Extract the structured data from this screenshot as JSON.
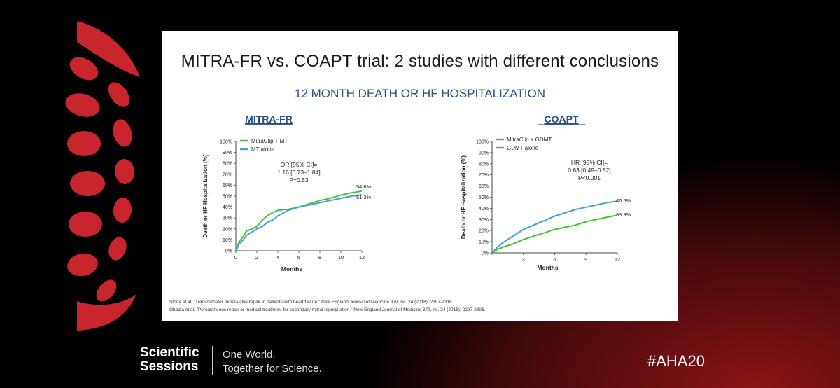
{
  "slide": {
    "title": "MITRA-FR vs. COAPT trial: 2 studies with different conclusions",
    "subtitle": "12 MONTH DEATH OR HF HOSPITALIZATION",
    "references": [
      "Stone et al. \"Transcatheter mitral-valve repair in patients with heart failure.\" New England Journal of Medicine 379, no. 24 (2018): 2307-2318.",
      "Obadia et al. \"Percutaneous repair or medical treatment for secondary mitral regurgitation.\" New England Journal of Medicine 379, no. 24 (2018): 2297-2306."
    ]
  },
  "footer": {
    "brand_line1": "Scientific",
    "brand_line2": "Sessions",
    "tagline_line1": "One World.",
    "tagline_line2": "Together for Science.",
    "hashtag": "#AHA20"
  },
  "colors": {
    "green": "#44c43a",
    "blue": "#4a9fd8",
    "title_blue": "#2a4f80",
    "brand_red": "#c8262c"
  },
  "chart_data": [
    {
      "type": "line",
      "title": "MITRA-FR",
      "xlabel": "Months",
      "ylabel": "Death or  HF Hospitalization (%)",
      "xlim": [
        0,
        12
      ],
      "ylim": [
        0,
        100
      ],
      "xticks": [
        0,
        2,
        4,
        6,
        8,
        10,
        12
      ],
      "yticks": [
        0,
        10,
        20,
        30,
        40,
        50,
        60,
        70,
        80,
        90,
        100
      ],
      "ytick_labels": [
        "0%",
        "10%",
        "20%",
        "30%",
        "40%",
        "50%",
        "60%",
        "70%",
        "80%",
        "90%",
        "100%"
      ],
      "annotation": [
        "OR [95% CI]=",
        "1.16 [0.73–1.84]",
        "P=0.53"
      ],
      "series": [
        {
          "name": "MitraClip + MT",
          "color": "green",
          "end_label": "54.6%",
          "x": [
            0,
            0.3,
            0.7,
            1,
            1.5,
            2,
            2.5,
            3,
            3.5,
            4,
            5,
            6,
            7,
            8,
            9,
            10,
            11,
            12
          ],
          "y": [
            0,
            8,
            13,
            18,
            20,
            22,
            28,
            32,
            35,
            37,
            38,
            40,
            43,
            46,
            48,
            51,
            53,
            54.6
          ]
        },
        {
          "name": "MT alone",
          "color": "blue",
          "end_label": "51.3%",
          "x": [
            0,
            0.3,
            0.7,
            1,
            1.5,
            2,
            2.5,
            3,
            3.5,
            4,
            5,
            6,
            7,
            8,
            9,
            10,
            11,
            12
          ],
          "y": [
            0,
            6,
            10,
            14,
            17,
            20,
            22,
            26,
            28,
            32,
            37,
            40,
            42,
            44,
            46,
            48,
            50,
            51.3
          ]
        }
      ]
    },
    {
      "type": "line",
      "title": "COAPT",
      "xlabel": "Months",
      "ylabel": "Death or  HF Hospitalization (%)",
      "xlim": [
        0,
        12
      ],
      "ylim": [
        0,
        100
      ],
      "xticks": [
        0,
        3,
        6,
        9,
        12
      ],
      "yticks": [
        0,
        10,
        20,
        30,
        40,
        50,
        60,
        70,
        80,
        90,
        100
      ],
      "ytick_labels": [
        "0%",
        "10%",
        "20%",
        "30%",
        "40%",
        "50%",
        "60%",
        "70%",
        "80%",
        "90%",
        "100%"
      ],
      "annotation": [
        "HR [95% CI]=",
        "0.63 [0.49–0.82]",
        "P<0.001"
      ],
      "series": [
        {
          "name": "MitraClip + GDMT",
          "color": "green",
          "end_label": "33.9%",
          "x": [
            0,
            0.5,
            1,
            2,
            3,
            4,
            5,
            6,
            7,
            8,
            9,
            10,
            11,
            12
          ],
          "y": [
            0,
            3,
            5,
            8,
            12,
            15,
            18,
            21,
            23,
            25,
            28,
            30,
            32,
            33.9
          ]
        },
        {
          "name": "GDMT alone",
          "color": "blue",
          "end_label": "46.5%",
          "x": [
            0,
            0.5,
            1,
            2,
            3,
            4,
            5,
            6,
            7,
            8,
            9,
            10,
            11,
            12
          ],
          "y": [
            0,
            5,
            9,
            15,
            21,
            25,
            29,
            33,
            36,
            39,
            41,
            43,
            45,
            46.5
          ]
        }
      ]
    }
  ]
}
